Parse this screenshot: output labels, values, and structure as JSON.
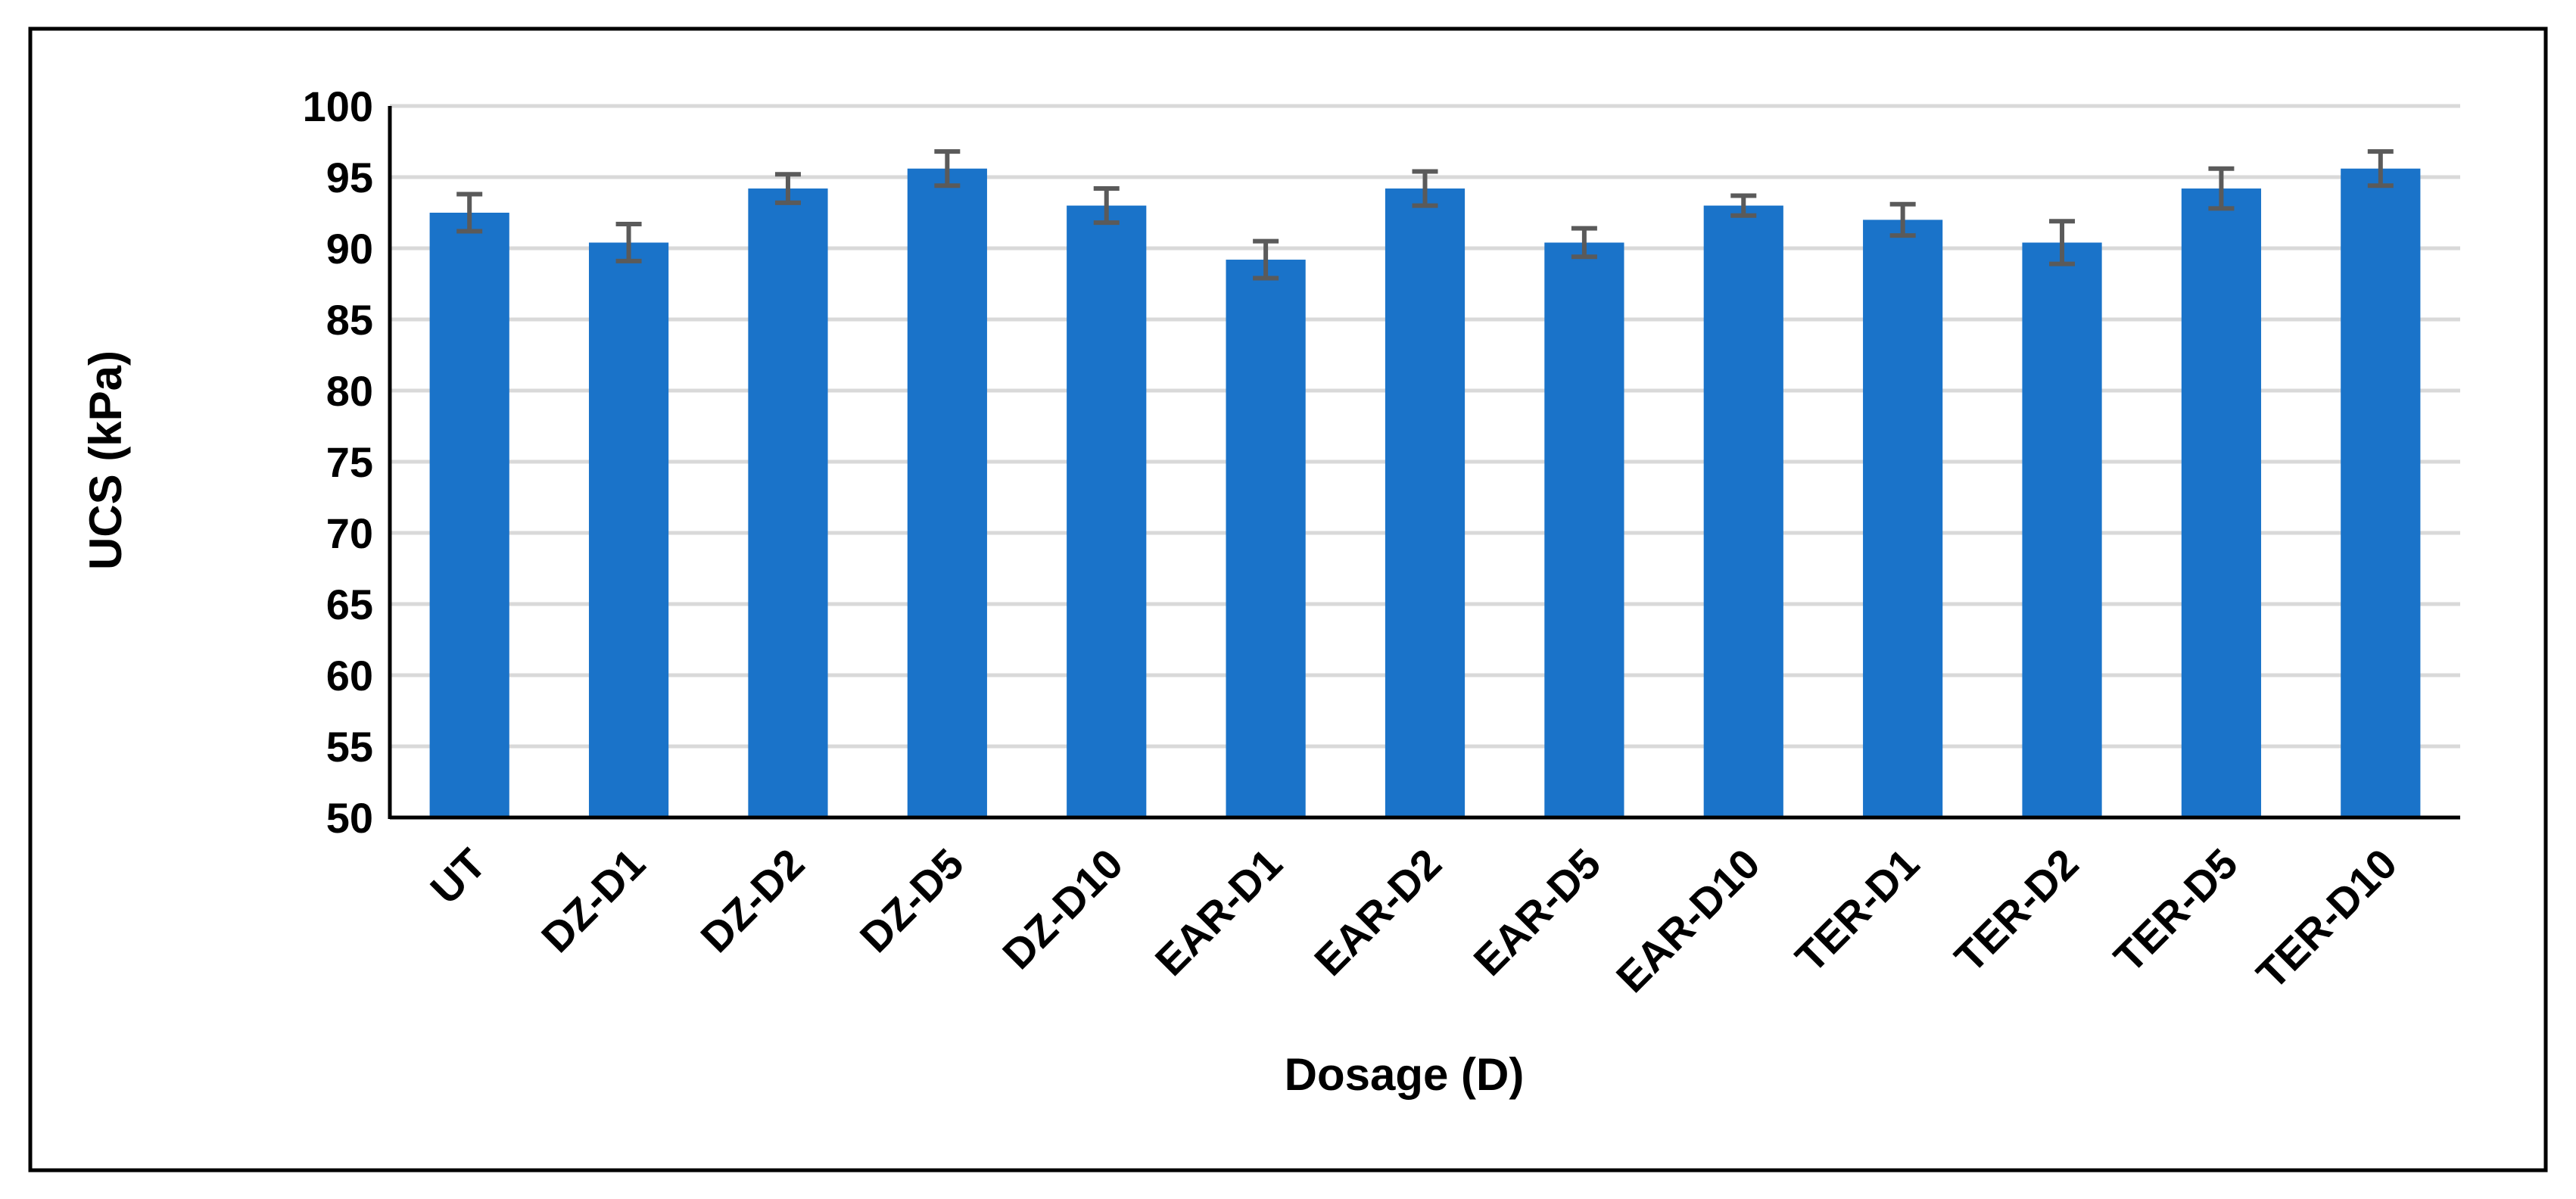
{
  "chart_data": {
    "type": "bar",
    "title": "",
    "xlabel": "Dosage (D)",
    "ylabel": "UCS (kPa)",
    "ylim": [
      50,
      100
    ],
    "yticks": [
      50,
      55,
      60,
      65,
      70,
      75,
      80,
      85,
      90,
      95,
      100
    ],
    "grid": true,
    "legend": "none",
    "categories": [
      "UT",
      "DZ-D1",
      "DZ-D2",
      "DZ-D5",
      "DZ-D10",
      "EAR-D1",
      "EAR-D2",
      "EAR-D5",
      "EAR-D10",
      "TER-D1",
      "TER-D2",
      "TER-D5",
      "TER-D10"
    ],
    "values": [
      92.5,
      90.4,
      94.2,
      95.6,
      93.0,
      89.2,
      94.2,
      90.4,
      93.0,
      92.0,
      90.4,
      94.2,
      95.6
    ],
    "error": [
      1.3,
      1.3,
      1.0,
      1.2,
      1.2,
      1.3,
      1.2,
      1.0,
      0.7,
      1.1,
      1.5,
      1.4,
      1.2
    ],
    "colors": {
      "bar": "#1a73c9",
      "error_bar": "#5a5a5a",
      "grid": "#d9d9d9",
      "axis": "#000000"
    }
  }
}
